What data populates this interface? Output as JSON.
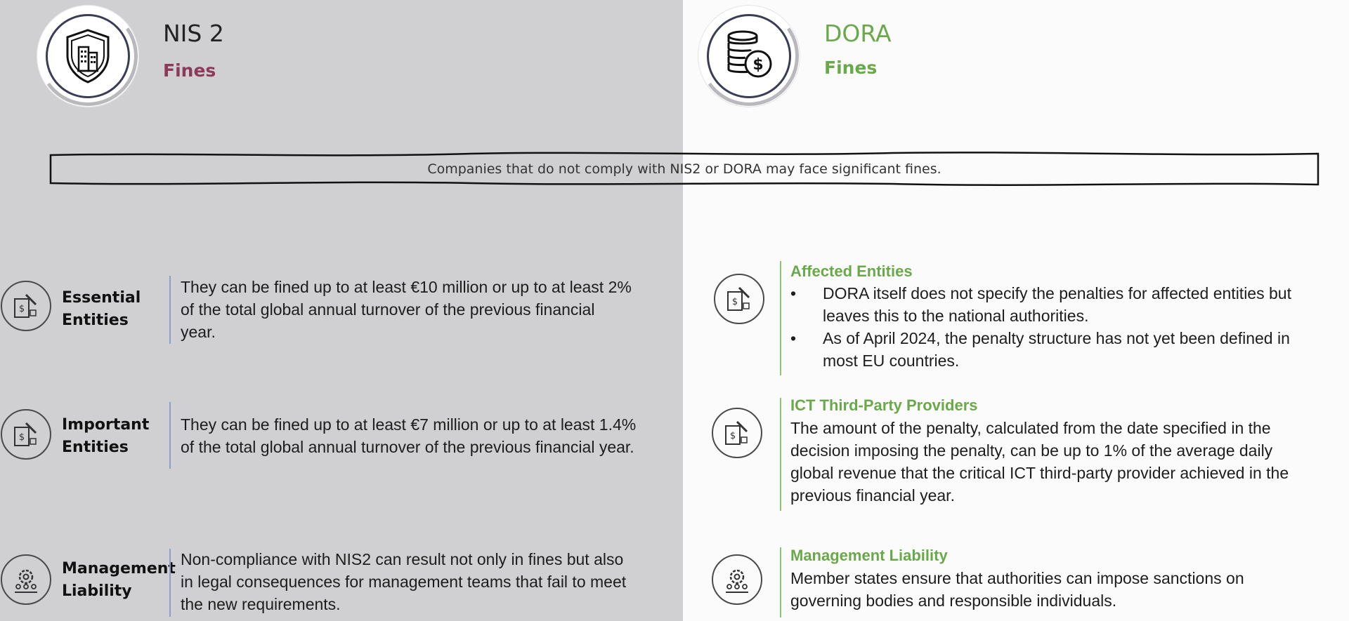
{
  "colors": {
    "left_bg": "#d0cfd1",
    "right_bg": "#fbfbfb",
    "nis_accent": "#8b3a5a",
    "dora_accent": "#6aa94a"
  },
  "nis": {
    "title": "NIS 2",
    "subtitle": "Fines",
    "icon": "shield-building-icon",
    "rows": [
      {
        "label_1": "Essential",
        "label_2": "Entities",
        "icon": "fine-document-icon",
        "text": [
          "They can be fined up to at least €10 million or up to at least 2%",
          "of the total global annual turnover of the previous financial",
          "year."
        ]
      },
      {
        "label_1": "Important",
        "label_2": "Entities",
        "icon": "fine-document-icon",
        "text": [
          "They can be fined up to at least €7 million or up to at least 1.4%",
          "of the total global annual turnover of the previous financial year."
        ]
      },
      {
        "label_1": "Management",
        "label_2": "Liability",
        "icon": "gear-people-icon",
        "text": [
          "Non-compliance with NIS2 can result not only in fines but also",
          "in legal consequences for management teams that fail to meet",
          "the new requirements."
        ]
      }
    ]
  },
  "dora": {
    "title": "DORA",
    "subtitle": "Fines",
    "icon": "coins-dollar-icon",
    "sections": [
      {
        "heading": "Affected Entities",
        "icon": "fine-document-icon",
        "bullets": [
          [
            "DORA itself does not specify the penalties for affected entities but",
            "leaves this to the national authorities."
          ],
          [
            "As of April 2024, the penalty structure has not yet been defined in",
            "most EU countries."
          ]
        ]
      },
      {
        "heading": "ICT Third-Party Providers",
        "icon": "fine-document-icon",
        "text": [
          "The amount of the penalty, calculated from the date specified in the",
          "decision imposing the penalty, can be up to 1% of the average daily",
          "global revenue that the critical ICT third-party provider achieved in the",
          "previous financial year."
        ]
      },
      {
        "heading": "Management Liability",
        "icon": "gear-people-icon",
        "text": [
          "Member states ensure that authorities can impose sanctions on",
          "governing bodies and responsible individuals."
        ]
      }
    ]
  },
  "banner": {
    "text": "Companies that do not comply with NIS2 or DORA may face significant fines."
  }
}
